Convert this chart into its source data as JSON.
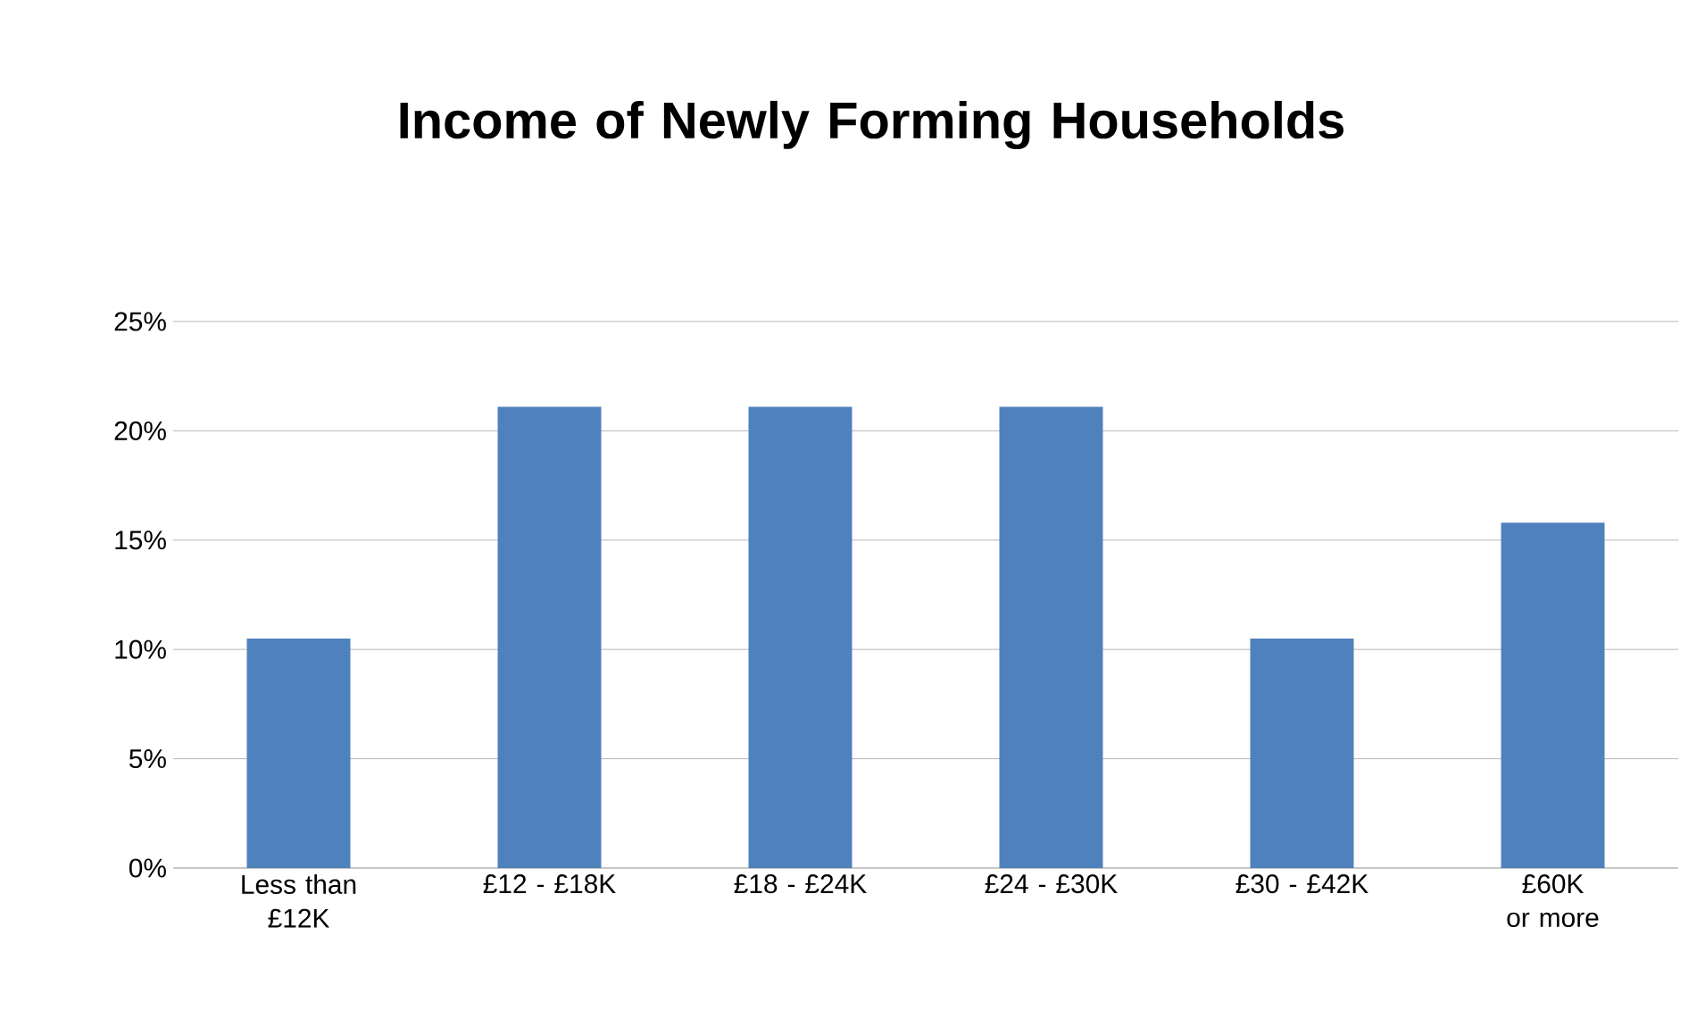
{
  "chart_data": {
    "type": "bar",
    "title": "Income of Newly Forming Households",
    "categories": [
      "Less than £12K",
      "£12 - £18K",
      "£18 - £24K",
      "£24 - £30K",
      "£30 - £42K",
      "£60K or more"
    ],
    "values": [
      10.5,
      21.1,
      21.1,
      21.1,
      10.5,
      15.8
    ],
    "color": "#4f81bd",
    "ylim": [
      0,
      25
    ],
    "yticks": [
      {
        "value": 0,
        "label": "0%"
      },
      {
        "value": 5,
        "label": "5%"
      },
      {
        "value": 10,
        "label": "10%"
      },
      {
        "value": 15,
        "label": "15%"
      },
      {
        "value": 20,
        "label": "20%"
      },
      {
        "value": 25,
        "label": "25%"
      }
    ],
    "grid": "y"
  }
}
